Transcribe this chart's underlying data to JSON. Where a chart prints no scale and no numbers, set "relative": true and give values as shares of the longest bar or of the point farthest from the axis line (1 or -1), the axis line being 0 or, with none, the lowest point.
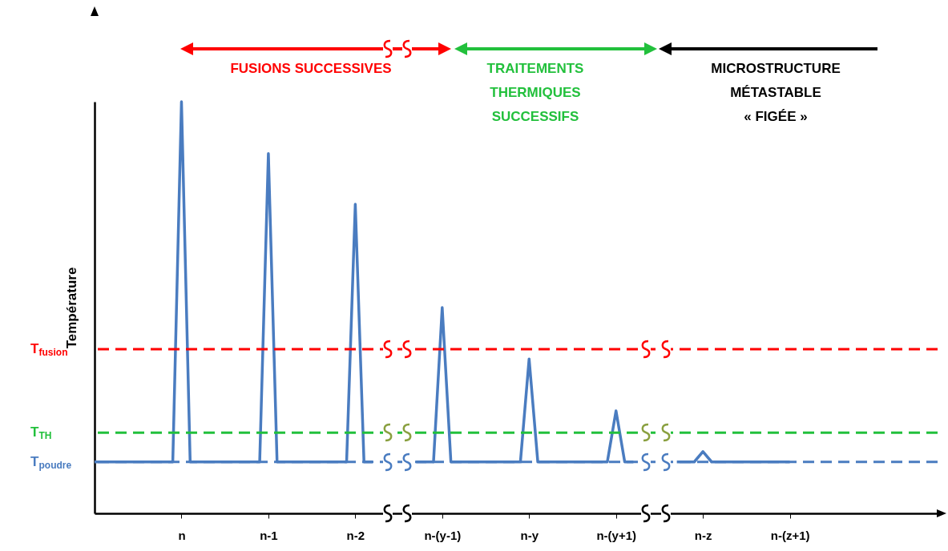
{
  "chart_data": {
    "type": "line",
    "relative": true,
    "ylabel": "Température",
    "categories": [
      null,
      null,
      null,
      null,
      null,
      null,
      null,
      null,
      null,
      null,
      "n",
      null,
      null,
      null,
      null,
      null,
      null,
      null,
      null,
      null,
      "n-1",
      null,
      null,
      null,
      null,
      null,
      null,
      null,
      null,
      null,
      "n-2",
      null,
      null,
      null,
      null,
      null,
      null,
      null,
      null,
      null,
      "n-(y-1)",
      null,
      null,
      null,
      null,
      null,
      null,
      null,
      null,
      null,
      "n-y",
      null,
      null,
      null,
      null,
      null,
      null,
      null,
      null,
      null,
      "n-(y+1)",
      null,
      null,
      null,
      null,
      null,
      null,
      null,
      null,
      null,
      "n-z",
      null,
      null,
      null,
      null,
      null,
      null,
      null,
      null,
      null,
      "n-(z+1)",
      null,
      null,
      null,
      null,
      null,
      null,
      null,
      null,
      null,
      null,
      null,
      null,
      null,
      null,
      null,
      null,
      null
    ],
    "series": [
      {
        "color": "#4a7cc0",
        "values": [
          0.125,
          0.125,
          0.125,
          0.125,
          0.125,
          0.125,
          0.125,
          0.125,
          0.125,
          0.125,
          1,
          0.125,
          0.125,
          0.125,
          0.125,
          0.125,
          0.125,
          0.125,
          0.125,
          0.125,
          0.874,
          0.125,
          0.125,
          0.125,
          0.125,
          0.125,
          0.125,
          0.125,
          0.125,
          0.125,
          0.751,
          0.125,
          0.125,
          null,
          null,
          null,
          null,
          0.125,
          0.125,
          0.125,
          0.5,
          0.125,
          0.125,
          0.125,
          0.125,
          0.125,
          0.125,
          0.125,
          0.125,
          0.125,
          0.375,
          0.125,
          0.125,
          0.125,
          0.125,
          0.125,
          0.125,
          0.125,
          0.125,
          0.125,
          0.249,
          0.125,
          0.125,
          null,
          null,
          null,
          null,
          0.125,
          0.125,
          0.125,
          0.15,
          0.125,
          0.125,
          0.125,
          0.125,
          0.125,
          0.125,
          0.125,
          0.125,
          0.125,
          0.125,
          null,
          null,
          null,
          null,
          null,
          null,
          null,
          null,
          null,
          null,
          null,
          null,
          null,
          null,
          null,
          null,
          null
        ]
      }
    ],
    "line_style": "solid",
    "marker": "none",
    "grid": false,
    "ref_lines": [
      {
        "axis": "y",
        "value": 0.399,
        "label": "T$_{fusion}$",
        "color": "#ff0000",
        "line_style": "dashed"
      },
      {
        "axis": "y",
        "value": 0.196,
        "label": "T$_{TH}$",
        "color": "#22c03c",
        "line_style": "dashed"
      },
      {
        "axis": "y",
        "value": 0.125,
        "label": "T$_{poudre}$",
        "color": "#4a7cc0",
        "line_style": "dashed"
      }
    ],
    "annotations": [
      "FUSIONS SUCCESSIVES",
      "TRAITEMENTS\nTHERMIQUES\nSUCCESSIFS",
      "MICROSTRUCTURE\nMÉTASTABLE\n« FIGÉE »"
    ]
  }
}
